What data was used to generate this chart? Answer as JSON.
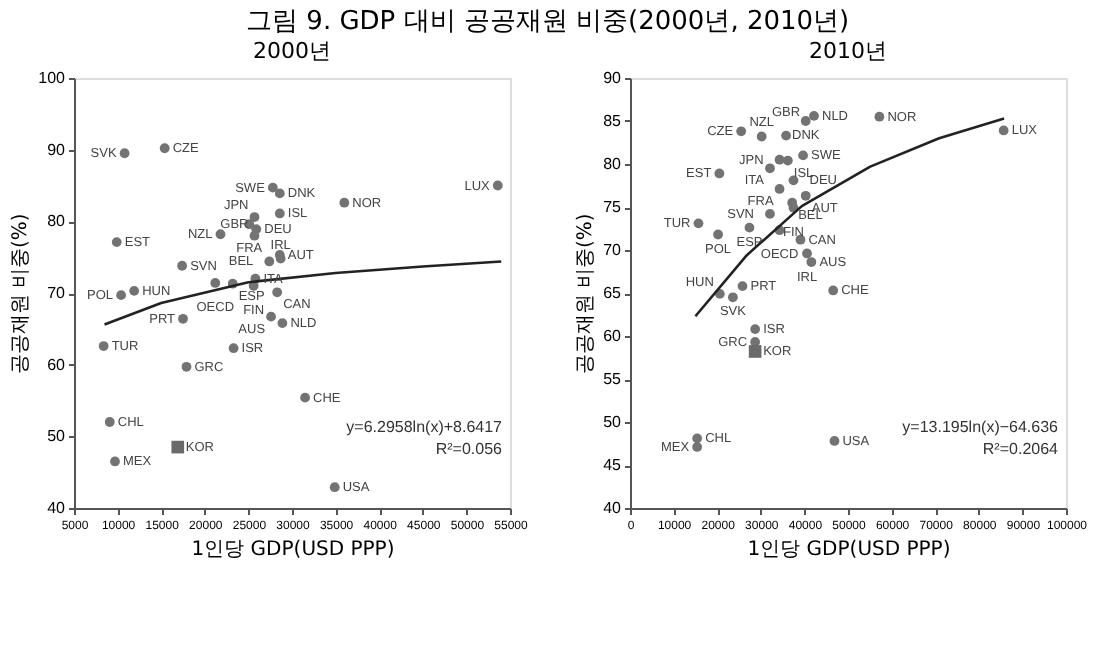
{
  "chart_data": [
    {
      "type": "scatter",
      "title": "그림 9. GDP 대비 공공재원 비중(2000년, 2010년)",
      "subtitle": "2000년",
      "xlabel": "1인당 GDP(USD PPP)",
      "ylabel": "공공재원 비중(%)",
      "xlim": [
        5000,
        55000
      ],
      "ylim": [
        40,
        100
      ],
      "xticks": [
        5000,
        10000,
        15000,
        20000,
        25000,
        30000,
        35000,
        40000,
        45000,
        50000,
        55000
      ],
      "yticks": [
        40,
        50,
        60,
        70,
        80,
        90,
        100
      ],
      "grid": false,
      "series": [
        {
          "type": "scatter",
          "marker": "circle",
          "color": "#737373",
          "x": [
            10800,
            15400,
            27800,
            25700,
            28600,
            28600,
            36000,
            53600,
            21800,
            25100,
            25900,
            25700,
            28600,
            27400,
            28700,
            9900,
            17400,
            21200,
            23200,
            25800,
            25600,
            28300,
            10400,
            11900,
            17500,
            27600,
            28900,
            8400,
            23300,
            17900,
            31500,
            9100,
            9700,
            34900
          ],
          "values": [
            89.5,
            90.2,
            84.7,
            80.6,
            83.9,
            81.1,
            82.6,
            85,
            78.2,
            79.6,
            78.9,
            78.0,
            75.3,
            74.4,
            74.8,
            77.1,
            73.8,
            71.4,
            71.3,
            72.0,
            71.0,
            70.1,
            69.7,
            70.3,
            66.4,
            66.7,
            65.8,
            62.6,
            62.3,
            59.7,
            55.4,
            52.0,
            46.5,
            42.9
          ]
        },
        {
          "type": "scatter",
          "marker": "square",
          "color": "#6a6a6a",
          "x": [
            16900
          ],
          "values": [
            48.5
          ]
        },
        {
          "type": "line",
          "color": "#222222",
          "line_style": "solid",
          "x": [
            8500,
            15000,
            25000,
            35000,
            45000,
            54000
          ],
          "values": [
            65.6,
            68.6,
            71.5,
            72.8,
            73.7,
            74.4
          ]
        }
      ],
      "annotations": [
        {
          "text": "SVK",
          "x": 10800,
          "y": 89.5
        },
        {
          "text": "CZE",
          "x": 15400,
          "y": 90.2
        },
        {
          "text": "SWE",
          "x": 27800,
          "y": 84.7
        },
        {
          "text": "JPN",
          "x": 25700,
          "y": 80.6
        },
        {
          "text": "DNK",
          "x": 28600,
          "y": 83.9
        },
        {
          "text": "ISL",
          "x": 28600,
          "y": 81.1
        },
        {
          "text": "NOR",
          "x": 36000,
          "y": 82.6
        },
        {
          "text": "LUX",
          "x": 53600,
          "y": 85
        },
        {
          "text": "NZL",
          "x": 21800,
          "y": 78.2
        },
        {
          "text": "FRA",
          "x": 25100,
          "y": 79.6
        },
        {
          "text": "DEU",
          "x": 25900,
          "y": 78.9
        },
        {
          "text": "GBR",
          "x": 25700,
          "y": 78.0
        },
        {
          "text": "AUT",
          "x": 28600,
          "y": 75.3
        },
        {
          "text": "BEL",
          "x": 27400,
          "y": 74.4
        },
        {
          "text": "IRL",
          "x": 28700,
          "y": 74.8
        },
        {
          "text": "EST",
          "x": 9900,
          "y": 77.1
        },
        {
          "text": "SVN",
          "x": 17400,
          "y": 73.8
        },
        {
          "text": "OECD",
          "x": 21200,
          "y": 71.4
        },
        {
          "text": "ESP",
          "x": 23200,
          "y": 71.3
        },
        {
          "text": "ITA",
          "x": 25800,
          "y": 72.0
        },
        {
          "text": "FIN",
          "x": 25600,
          "y": 71.0
        },
        {
          "text": "CAN",
          "x": 28300,
          "y": 70.1
        },
        {
          "text": "POL",
          "x": 10400,
          "y": 69.7
        },
        {
          "text": "HUN",
          "x": 11900,
          "y": 70.3
        },
        {
          "text": "PRT",
          "x": 17500,
          "y": 66.4
        },
        {
          "text": "AUS",
          "x": 27600,
          "y": 66.7
        },
        {
          "text": "NLD",
          "x": 28900,
          "y": 65.8
        },
        {
          "text": "TUR",
          "x": 8400,
          "y": 62.6
        },
        {
          "text": "ISR",
          "x": 23300,
          "y": 62.3
        },
        {
          "text": "GRC",
          "x": 17900,
          "y": 59.7
        },
        {
          "text": "CHE",
          "x": 31500,
          "y": 55.4
        },
        {
          "text": "CHL",
          "x": 9100,
          "y": 52.0
        },
        {
          "text": "MEX",
          "x": 9700,
          "y": 46.5
        },
        {
          "text": "USA",
          "x": 34900,
          "y": 42.9
        },
        {
          "text": "KOR",
          "x": 16900,
          "y": 48.5
        },
        "y=6.2958ln(x)+8.6417",
        "R²=0.056"
      ]
    },
    {
      "type": "scatter",
      "title": "2010년",
      "xlabel": "1인당 GDP(USD PPP)",
      "ylabel": "공공재원 비중(%)",
      "xlim": [
        0,
        100000
      ],
      "ylim": [
        40,
        90
      ],
      "xticks": [
        0,
        10000,
        20000,
        30000,
        40000,
        50000,
        60000,
        70000,
        80000,
        90000,
        100000
      ],
      "yticks": [
        40,
        45,
        50,
        55,
        60,
        65,
        70,
        75,
        80,
        85,
        90
      ],
      "grid": false,
      "series": [
        {
          "type": "scatter",
          "marker": "circle",
          "color": "#737373",
          "x": [
            25500,
            30200,
            40300,
            42200,
            35800,
            57200,
            85700,
            34300,
            39700,
            36200,
            32100,
            20500,
            37500,
            34300,
            40300,
            37200,
            32100,
            37500,
            15700,
            20200,
            27400,
            34300,
            39100,
            40600,
            41600,
            46600,
            25800,
            20600,
            23600,
            28700,
            28700,
            15400,
            15400,
            46900
          ],
          "values": [
            83.8,
            83.2,
            85.0,
            85.6,
            83.3,
            85.5,
            83.9,
            80.5,
            81.0,
            80.4,
            79.5,
            78.9,
            78.1,
            77.1,
            76.3,
            75.5,
            74.2,
            74.9,
            73.1,
            71.8,
            72.6,
            72.3,
            71.2,
            69.6,
            68.6,
            65.3,
            65.8,
            64.9,
            64.5,
            60.8,
            59.3,
            48.1,
            47.1,
            47.8
          ]
        },
        {
          "type": "scatter",
          "marker": "square",
          "color": "#6a6a6a",
          "x": [
            28700
          ],
          "values": [
            58.2
          ]
        },
        {
          "type": "line",
          "color": "#222222",
          "line_style": "solid",
          "x": [
            15000,
            26800,
            39400,
            55100,
            70900,
            85800
          ],
          "values": [
            62.3,
            69.4,
            75.1,
            79.7,
            83.0,
            85.3
          ]
        }
      ],
      "annotations": [
        {
          "text": "CZE",
          "x": 25500,
          "y": 83.8
        },
        {
          "text": "NZL",
          "x": 30200,
          "y": 83.2
        },
        {
          "text": "DNK",
          "x": 40300,
          "y": 85.0
        },
        {
          "text": "NLD",
          "x": 42200,
          "y": 85.6
        },
        {
          "text": "GBR",
          "x": 35800,
          "y": 83.3
        },
        {
          "text": "NOR",
          "x": 57200,
          "y": 85.5
        },
        {
          "text": "LUX",
          "x": 85700,
          "y": 83.9
        },
        {
          "text": "JPN",
          "x": 34300,
          "y": 80.5
        },
        {
          "text": "SWE",
          "x": 39700,
          "y": 81.0
        },
        {
          "text": "ISL",
          "x": 36200,
          "y": 80.4
        },
        {
          "text": "ITA",
          "x": 32100,
          "y": 79.5
        },
        {
          "text": "EST",
          "x": 20500,
          "y": 78.9
        },
        {
          "text": "DEU",
          "x": 37500,
          "y": 78.1
        },
        {
          "text": "FRA",
          "x": 34300,
          "y": 77.1
        },
        {
          "text": "AUT",
          "x": 40300,
          "y": 76.3
        },
        {
          "text": "BEL",
          "x": 37200,
          "y": 75.5
        },
        {
          "text": "SVN",
          "x": 32100,
          "y": 74.2
        },
        {
          "text": "FIN",
          "x": 37500,
          "y": 74.9
        },
        {
          "text": "TUR",
          "x": 15700,
          "y": 73.1
        },
        {
          "text": "POL",
          "x": 20200,
          "y": 71.8
        },
        {
          "text": "ESP",
          "x": 27400,
          "y": 72.6
        },
        {
          "text": "OECD",
          "x": 34300,
          "y": 72.3
        },
        {
          "text": "CAN",
          "x": 39100,
          "y": 71.2
        },
        {
          "text": "IRL",
          "x": 40600,
          "y": 69.6
        },
        {
          "text": "AUS",
          "x": 41600,
          "y": 68.6
        },
        {
          "text": "CHE",
          "x": 46600,
          "y": 65.3
        },
        {
          "text": "PRT",
          "x": 25800,
          "y": 65.8
        },
        {
          "text": "HUN",
          "x": 20600,
          "y": 64.9
        },
        {
          "text": "SVK",
          "x": 23600,
          "y": 64.5
        },
        {
          "text": "ISR",
          "x": 28700,
          "y": 60.8
        },
        {
          "text": "GRC",
          "x": 28700,
          "y": 59.3
        },
        {
          "text": "CHL",
          "x": 15400,
          "y": 48.1
        },
        {
          "text": "MEX",
          "x": 15400,
          "y": 47.1
        },
        {
          "text": "USA",
          "x": 46900,
          "y": 47.8
        },
        {
          "text": "KOR",
          "x": 28700,
          "y": 58.2
        },
        "y=13.195ln(x)−64.636",
        "R²=0.2064"
      ]
    }
  ]
}
